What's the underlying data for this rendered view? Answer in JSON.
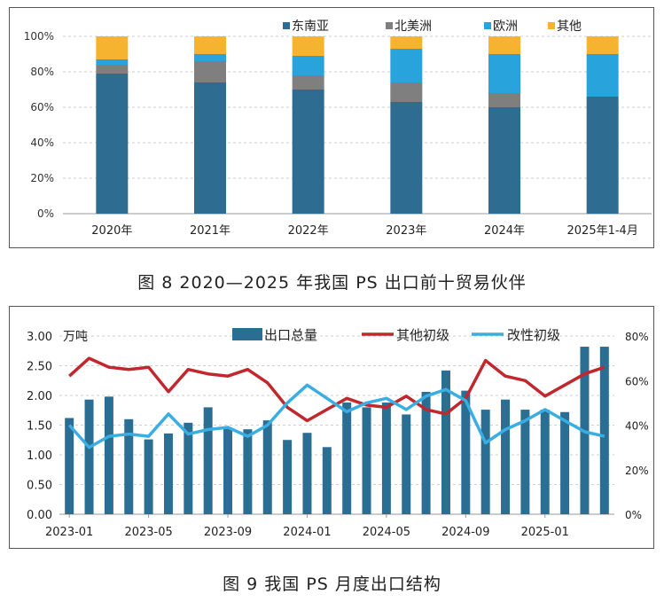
{
  "colors": {
    "southeast_asia": "#2e6d91",
    "north_america": "#7f7f7f",
    "europe": "#29a3dc",
    "other": "#f5b330",
    "export_bar": "#2b6e93",
    "other_primary_line": "#c0282e",
    "modified_primary_line": "#3aaee2"
  },
  "chart_data": [
    {
      "type": "bar",
      "stacked": true,
      "title": "",
      "categories": [
        "2020年",
        "2021年",
        "2022年",
        "2023年",
        "2024年",
        "2025年1-4月"
      ],
      "series": [
        {
          "name": "东南亚",
          "values": [
            79,
            74,
            70,
            63,
            60,
            66
          ]
        },
        {
          "name": "北美洲",
          "values": [
            5,
            12,
            8,
            11,
            8,
            0
          ]
        },
        {
          "name": "欧洲",
          "values": [
            3,
            4,
            11,
            19,
            22,
            24
          ]
        },
        {
          "name": "其他",
          "values": [
            13,
            10,
            11,
            7,
            10,
            10
          ]
        }
      ],
      "y_ticks": [
        "0%",
        "20%",
        "40%",
        "60%",
        "80%",
        "100%"
      ],
      "ylim": [
        0,
        100
      ],
      "grid": true,
      "legend_position": "top-right"
    },
    {
      "type": "bar+line",
      "title": "",
      "y_label_left": "万吨",
      "x_tick_labels": [
        "2023-01",
        "2023-05",
        "2023-09",
        "2024-01",
        "2024-05",
        "2024-09",
        "2025-01"
      ],
      "x": [
        "2023-01",
        "2023-02",
        "2023-03",
        "2023-04",
        "2023-05",
        "2023-06",
        "2023-07",
        "2023-08",
        "2023-09",
        "2023-10",
        "2023-11",
        "2023-12",
        "2024-01",
        "2024-02",
        "2024-03",
        "2024-04",
        "2024-05",
        "2024-06",
        "2024-07",
        "2024-08",
        "2024-09",
        "2024-10",
        "2024-11",
        "2024-12",
        "2025-01",
        "2025-02",
        "2025-03",
        "2025-04"
      ],
      "left_ticks": [
        "0.00",
        "0.50",
        "1.00",
        "1.50",
        "2.00",
        "2.50",
        "3.00"
      ],
      "right_ticks": [
        "0%",
        "20%",
        "40%",
        "60%",
        "80%"
      ],
      "ylim_left": [
        0,
        3
      ],
      "ylim_right": [
        0,
        80
      ],
      "series": [
        {
          "name": "出口总量",
          "kind": "bar",
          "axis": "left",
          "values": [
            1.62,
            1.93,
            1.98,
            1.6,
            1.26,
            1.36,
            1.54,
            1.8,
            1.46,
            1.43,
            1.58,
            1.25,
            1.37,
            1.13,
            1.88,
            1.8,
            1.88,
            1.68,
            2.06,
            2.42,
            2.08,
            1.76,
            1.93,
            1.76,
            1.76,
            1.72,
            2.82,
            2.82
          ]
        },
        {
          "name": "其他初级",
          "kind": "line",
          "axis": "right",
          "values": [
            62,
            70,
            66,
            65,
            66,
            55,
            65,
            63,
            62,
            65,
            59,
            48,
            42,
            47,
            52,
            49,
            48,
            53,
            47,
            45,
            52,
            69,
            62,
            60,
            53,
            58,
            63,
            66
          ]
        },
        {
          "name": "改性初级",
          "kind": "line",
          "axis": "right",
          "values": [
            40,
            30,
            35,
            36,
            35,
            45,
            36,
            38,
            39,
            35,
            40,
            50,
            58,
            52,
            46,
            50,
            52,
            47,
            53,
            56,
            51,
            32,
            38,
            42,
            47,
            42,
            37,
            35
          ]
        }
      ],
      "grid": true,
      "legend_position": "top"
    }
  ],
  "captions": {
    "fig8": "图 8  2020—2025 年我国 PS 出口前十贸易伙伴",
    "fig9": "图 9  我国 PS 月度出口结构"
  }
}
